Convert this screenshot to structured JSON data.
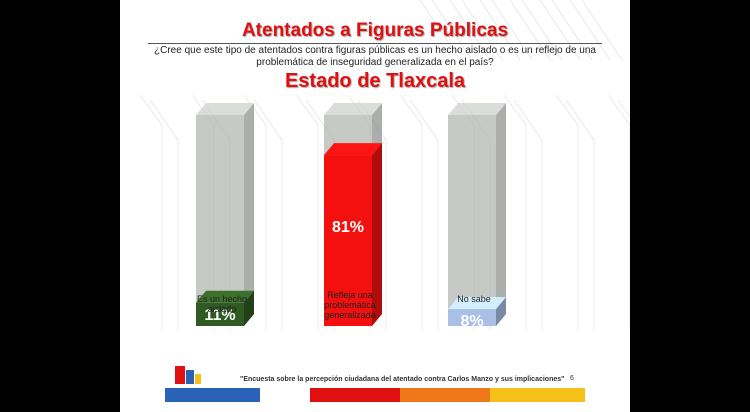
{
  "header": {
    "title": "Atentados a Figuras Públicas",
    "question": "¿Cree que este tipo de atentados contra figuras públicas es un hecho aislado o es un reflejo de una problemática de inseguridad generalizada en el país?",
    "subtitle": "Estado de Tlaxcala"
  },
  "chart_data": {
    "type": "bar",
    "categories": [
      "Es un hecho aislado",
      "Refleja una problemática generalizada",
      "No sabe"
    ],
    "values": [
      11,
      81,
      8
    ],
    "value_labels": [
      "11%",
      "81%",
      "8%"
    ],
    "ylim": [
      0,
      100
    ],
    "grid": false,
    "colors": [
      "#2f5a22",
      "#f51010",
      "#a9bfe6"
    ]
  },
  "footer": {
    "caption": "\"Encuesta sobre la percepción ciudadana del atentado contra Carlos Manzo y sus implicaciones\"",
    "page_number": "6"
  }
}
